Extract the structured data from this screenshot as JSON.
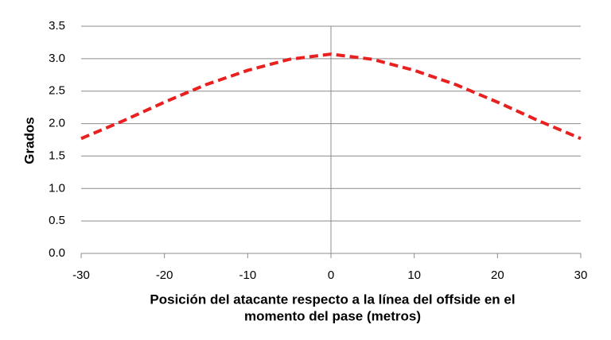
{
  "chart_data": {
    "type": "line",
    "x_label": [
      "Posición del atacante respecto a la línea del offside en el",
      "momento del pase (metros)"
    ],
    "y_label": "Grados",
    "x": [
      -30,
      -25,
      -20,
      -15,
      -10,
      -5,
      0,
      5,
      10,
      15,
      20,
      25,
      30
    ],
    "series": [
      {
        "color": "#e8201f",
        "dashed": true,
        "values": [
          1.77,
          2.04,
          2.33,
          2.6,
          2.82,
          2.99,
          3.07,
          2.99,
          2.82,
          2.6,
          2.33,
          2.04,
          1.77
        ]
      }
    ],
    "xlim": [
      -30,
      30
    ],
    "xticks": [
      -30,
      -20,
      -10,
      0,
      10,
      20,
      30
    ],
    "ylim": [
      0,
      3.5
    ],
    "yticks": [
      {
        "value": 0,
        "label": "0.0"
      },
      {
        "value": 0.5,
        "label": "0.5"
      },
      {
        "value": 1,
        "label": "1.0"
      },
      {
        "value": 1.5,
        "label": "1.5"
      },
      {
        "value": 2,
        "label": "2.0"
      },
      {
        "value": 2.5,
        "label": "2.5"
      },
      {
        "value": 3,
        "label": "3.0"
      },
      {
        "value": 3.5,
        "label": "3.5"
      }
    ],
    "grid": true
  }
}
